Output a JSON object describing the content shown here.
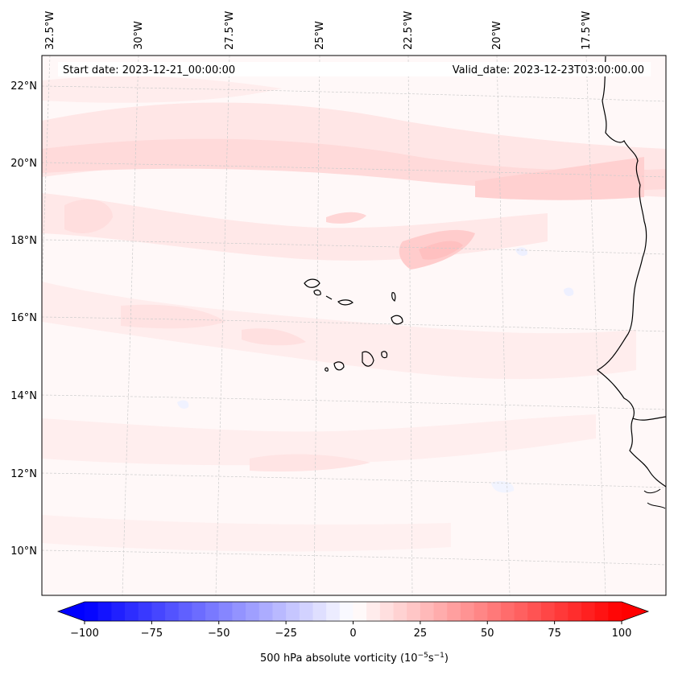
{
  "map": {
    "lon_labels": [
      "32.5°W",
      "30°W",
      "27.5°W",
      "25°W",
      "22.5°W",
      "20°W",
      "17.5°W"
    ],
    "lat_labels": [
      "22°N",
      "20°N",
      "18°N",
      "16°N",
      "14°N",
      "12°N",
      "10°N"
    ],
    "start_date": "Start date: 2023-12-21_00:00:00",
    "valid_date": "Valid_date: 2023-12-23T03:00:00.00"
  },
  "colorbar": {
    "label": "500 hPa absolute vorticity (10",
    "label_sup1": "−5",
    "label_mid": "s",
    "label_sup2": "−1",
    "label_end": ")",
    "ticks": [
      "−100",
      "−75",
      "−50",
      "−25",
      "0",
      "25",
      "50",
      "75",
      "100"
    ],
    "min_color": "#0000ff",
    "mid_color": "#ffffff",
    "max_color": "#ff0000"
  }
}
